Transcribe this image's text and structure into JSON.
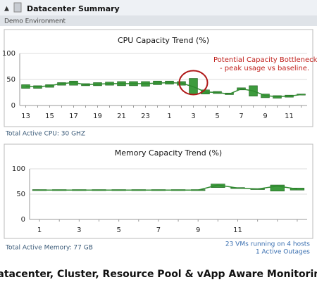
{
  "header": {
    "title": "Datacenter Summary",
    "subtitle": "Demo Environment"
  },
  "chart_data": [
    {
      "type": "line",
      "title": "CPU Capacity Trend (%)",
      "categories": [
        "13",
        null,
        "15",
        null,
        "17",
        null,
        "19",
        null,
        "21",
        null,
        "23",
        null,
        "1",
        null,
        "3",
        null,
        "5",
        null,
        "7",
        null,
        "9",
        null,
        "11",
        null
      ],
      "values": [
        37,
        36,
        38,
        42,
        44,
        40,
        41,
        42,
        42,
        42,
        42,
        43,
        44,
        43,
        36,
        26,
        25,
        22,
        32,
        28,
        19,
        17,
        18,
        21
      ],
      "low": [
        33,
        33,
        35,
        39,
        39,
        38,
        38,
        39,
        38,
        38,
        37,
        40,
        41,
        39,
        22,
        22,
        23,
        21,
        30,
        18,
        15,
        14,
        16,
        20
      ],
      "high": [
        40,
        38,
        40,
        44,
        47,
        42,
        44,
        45,
        46,
        46,
        46,
        47,
        47,
        46,
        52,
        30,
        27,
        24,
        34,
        38,
        22,
        19,
        20,
        22
      ],
      "color": "#2f8a2f",
      "ylim": [
        0,
        100
      ],
      "yticks": [
        0,
        50,
        100
      ],
      "grid": true,
      "annotation": [
        "Potential Capacity Bottleneck",
        "- peak usage vs baseline."
      ]
    },
    {
      "type": "line",
      "title": "Memory Capacity Trend (%)",
      "categories": [
        "1",
        null,
        "3",
        null,
        "5",
        null,
        "7",
        null,
        "9",
        null,
        "11",
        null,
        null,
        null
      ],
      "values": [
        58,
        58,
        58,
        58,
        58,
        58,
        58,
        58,
        58,
        68,
        62,
        60,
        66,
        60
      ],
      "low": [
        57,
        57,
        57,
        57,
        57,
        57,
        57,
        57,
        57,
        63,
        61,
        59,
        56,
        58
      ],
      "high": [
        59,
        59,
        59,
        59,
        59,
        59,
        59,
        59,
        59,
        70,
        63,
        61,
        68,
        62
      ],
      "color": "#2f8a2f",
      "ylim": [
        0,
        100
      ],
      "yticks": [
        0,
        50,
        100
      ],
      "grid": true
    }
  ],
  "footer": {
    "cpu": "Total Active CPU: 30 GHZ",
    "memory": "Total Active Memory: 77 GB",
    "vms": "23 VMs running on 4 hosts",
    "outages": "1 Active Outages"
  },
  "caption": "Datacenter, Cluster, Resource Pool & vApp Aware Monitoring"
}
